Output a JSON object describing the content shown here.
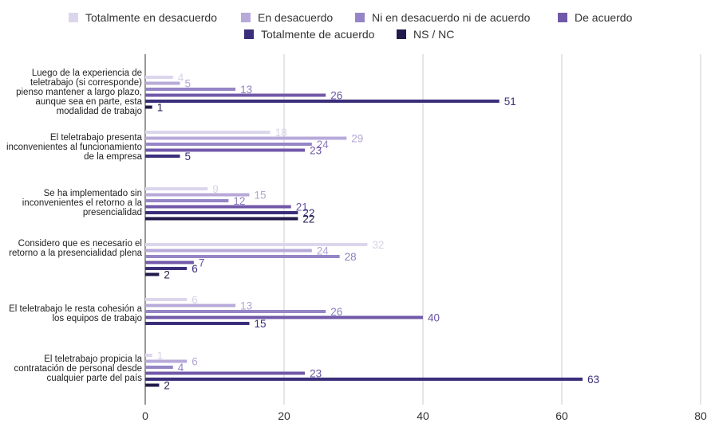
{
  "chart_data": {
    "type": "bar",
    "orientation": "horizontal",
    "categories": [
      "Luego de la experiencia de teletrabajo (si corresponde) pienso mantener a largo plazo, aunque sea en parte, esta modalidad de trabajo",
      "El teletrabajo presenta inconvenientes al funcionamiento de la empresa",
      "Se ha implementado sin inconvenientes el retorno a la presencialidad",
      "Considero que es necesario el retorno a la presencialidad plena",
      "El teletrabajo le resta cohesión a los equipos de trabajo",
      "El teletrabajo propicia la contratación de personal desde cualquier parte del país"
    ],
    "series": [
      {
        "name": "Totalmente en desacuerdo",
        "color": "#dcd6ec",
        "values": [
          4,
          18,
          9,
          32,
          6,
          1
        ]
      },
      {
        "name": "En desacuerdo",
        "color": "#b7a9d8",
        "values": [
          5,
          29,
          15,
          24,
          13,
          6
        ]
      },
      {
        "name": "Ni en desacuerdo ni de acuerdo",
        "color": "#9585c6",
        "values": [
          13,
          24,
          12,
          28,
          26,
          4
        ]
      },
      {
        "name": "De acuerdo",
        "color": "#7158a8",
        "values": [
          26,
          23,
          21,
          7,
          40,
          23
        ]
      },
      {
        "name": "Totalmente de acuerdo",
        "color": "#3a2e7a",
        "values": [
          51,
          5,
          22,
          6,
          15,
          63
        ]
      },
      {
        "name": "NS / NC",
        "color": "#221a4a",
        "values": [
          1,
          null,
          22,
          2,
          null,
          2
        ]
      }
    ],
    "xlim": [
      0,
      80
    ],
    "xticks": [
      0,
      20,
      40,
      60,
      80
    ],
    "grid": true,
    "legend_position": "top"
  }
}
